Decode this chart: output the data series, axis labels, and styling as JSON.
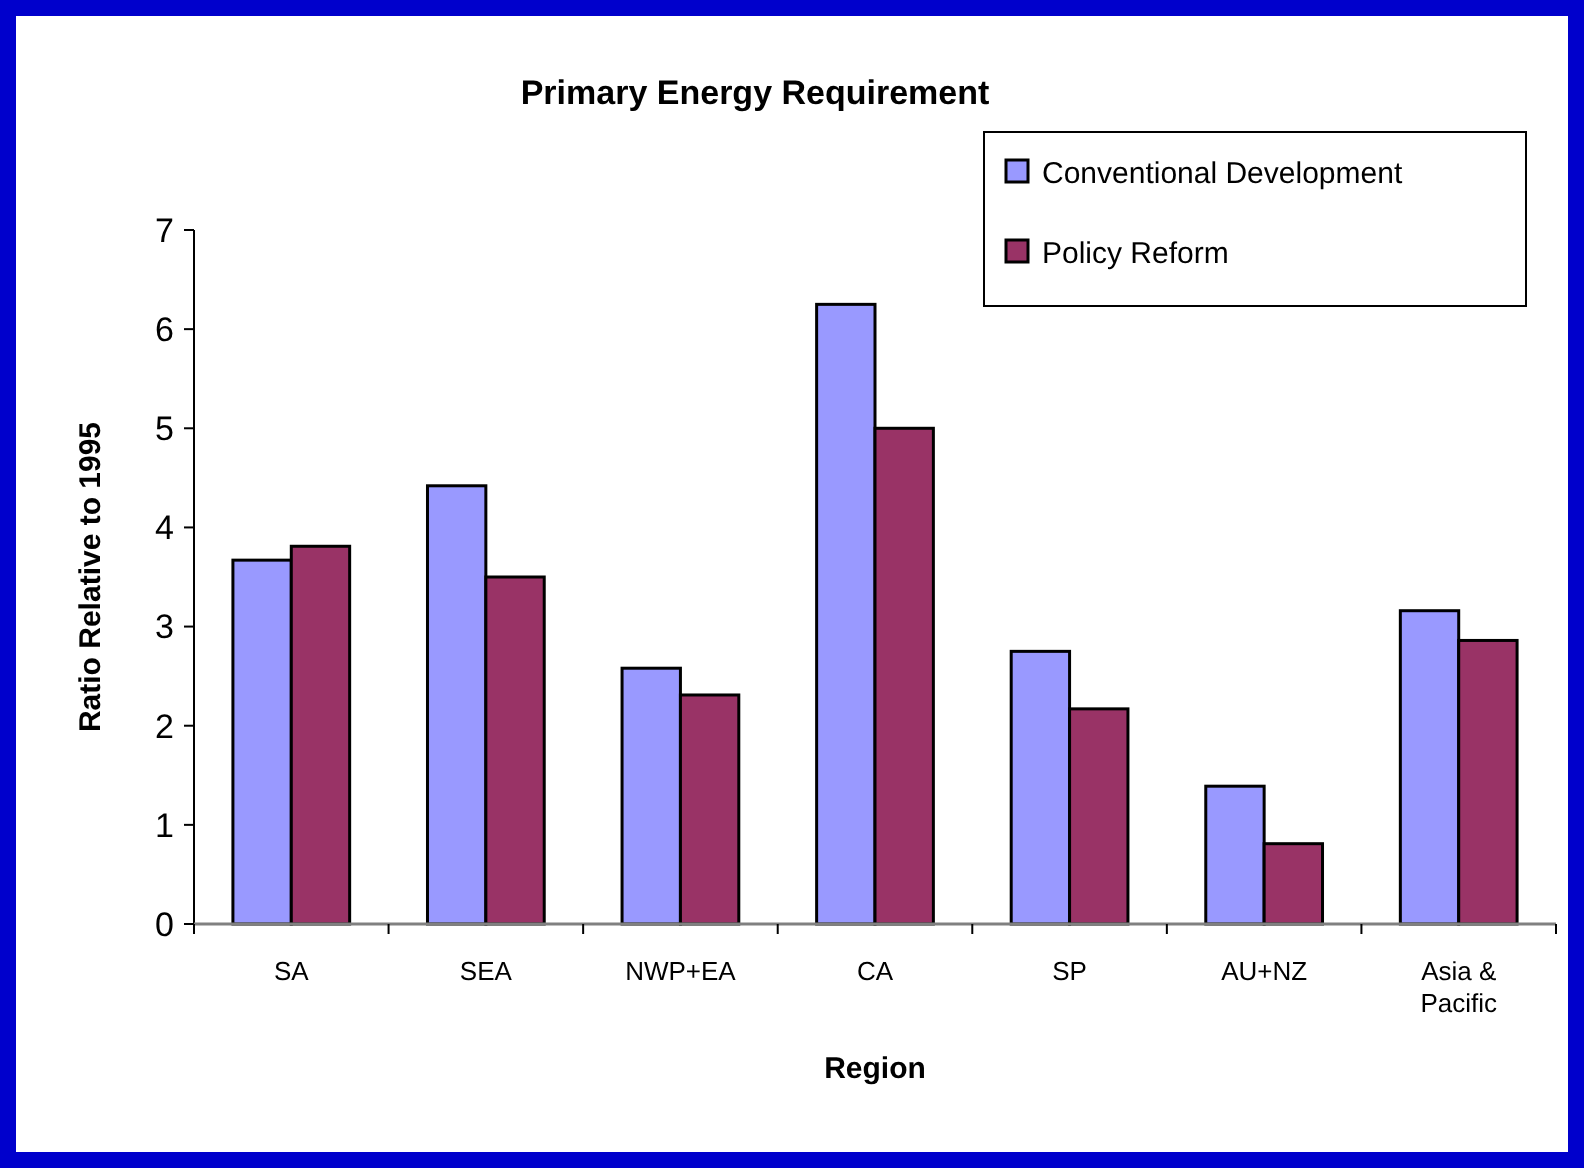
{
  "chart_data": {
    "type": "bar",
    "title": "Primary Energy Requirement",
    "xlabel": "Region",
    "ylabel": "Ratio Relative to 1995",
    "categories": [
      "SA",
      "SEA",
      "NWP+EA",
      "CA",
      "SP",
      "AU+NZ",
      "Asia & Pacific"
    ],
    "series": [
      {
        "name": "Conventional Development",
        "color": "#9999ff",
        "values": [
          3.67,
          4.42,
          2.58,
          6.25,
          2.75,
          1.39,
          3.16
        ]
      },
      {
        "name": "Policy Reform",
        "color": "#993366",
        "values": [
          3.81,
          3.5,
          2.31,
          5.0,
          2.17,
          0.81,
          2.86
        ]
      }
    ],
    "ylim": [
      0,
      7
    ],
    "yticks": [
      0,
      1,
      2,
      3,
      4,
      5,
      6,
      7
    ],
    "grid": false,
    "legend": "top right"
  }
}
